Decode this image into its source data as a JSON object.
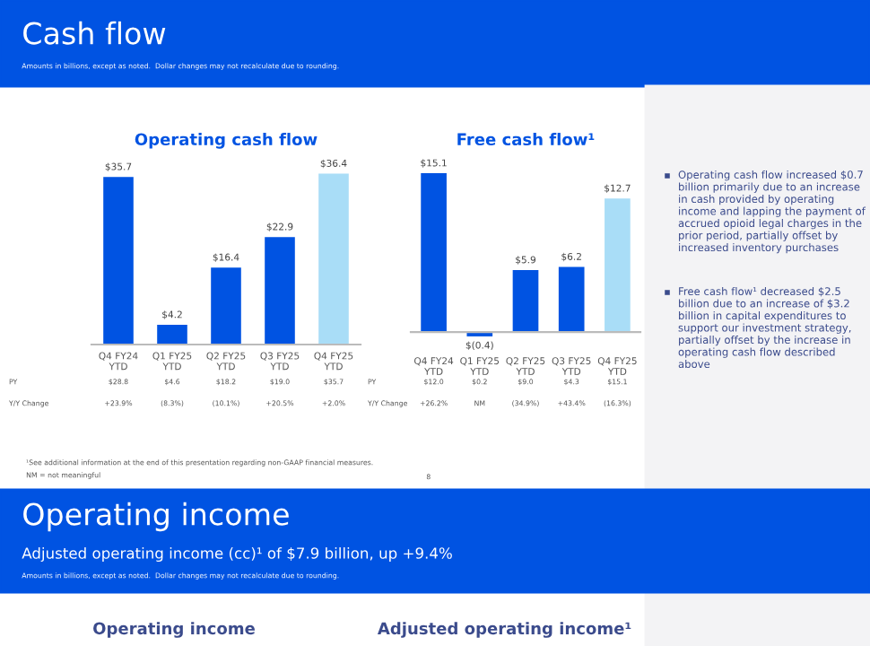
{
  "chart_data": [
    {
      "type": "other",
      "title": "Cash flow",
      "subtitle": "Amounts in billions, except as noted.  Dollar changes may not recalculate due to rounding.",
      "annotations": [
        "Operating cash flow increased $0.7 billion primarily due to an increase in cash provided by operating income and lapping the payment of accrued opioid legal charges in the prior period, partially offset by increased inventory purchases",
        "Free cash flow¹ decreased $2.5 billion due to an increase of $3.2 billion in capital expenditures to support our investment strategy, partially offset by the increase in operating cash flow described above",
        "¹See additional information at the end of this presentation regarding non-GAAP financial measures.",
        "NM = not meaningful",
        "8"
      ]
    },
    {
      "type": "bar",
      "title": "Operating cash flow",
      "categories": [
        "Q4 FY24\nYTD",
        "Q1 FY25\nYTD",
        "Q2 FY25\nYTD",
        "Q3 FY25\nYTD",
        "Q4 FY25\nYTD"
      ],
      "values": [
        35.7,
        4.2,
        16.4,
        22.9,
        36.4
      ],
      "value_labels": [
        "$35.7",
        "$4.2",
        "$16.4",
        "$22.9",
        "$36.4"
      ],
      "colors": [
        "#0053e2",
        "#0053e2",
        "#0053e2",
        "#0053e2",
        "#a9ddf7"
      ],
      "annotations": [
        "PY",
        "$28.8",
        "$4.6",
        "$18.2",
        "$19.0",
        "$35.7",
        "Y/Y Change",
        "+23.9%",
        "(8.3%)",
        "(10.1%)",
        "+20.5%",
        "+2.0%"
      ]
    },
    {
      "type": "bar",
      "title": "Free cash flow¹",
      "categories": [
        "Q4 FY24\nYTD",
        "Q1 FY25\nYTD",
        "Q2 FY25\nYTD",
        "Q3 FY25\nYTD",
        "Q4 FY25\nYTD"
      ],
      "values": [
        15.1,
        -0.4,
        5.9,
        6.2,
        12.7
      ],
      "value_labels": [
        "$15.1",
        "$(0.4)",
        "$5.9",
        "$6.2",
        "$12.7"
      ],
      "colors": [
        "#0053e2",
        "#0053e2",
        "#0053e2",
        "#0053e2",
        "#a9ddf7"
      ],
      "annotations": [
        "PY",
        "$12.0",
        "$0.2",
        "$9.0",
        "$4.3",
        "$15.1",
        "Y/Y Change",
        "+26.2%",
        "NM",
        "(34.9%)",
        "+43.4%",
        "(16.3%)"
      ]
    },
    {
      "type": "other",
      "title": "Operating income",
      "subtitle": "Adjusted operating income (cc)¹ of $7.9 billion, up +9.4%",
      "annotations": [
        "Amounts in billions, except as noted.  Dollar changes may not recalculate due to rounding.",
        "Operating income",
        "Adjusted operating income¹"
      ]
    }
  ]
}
